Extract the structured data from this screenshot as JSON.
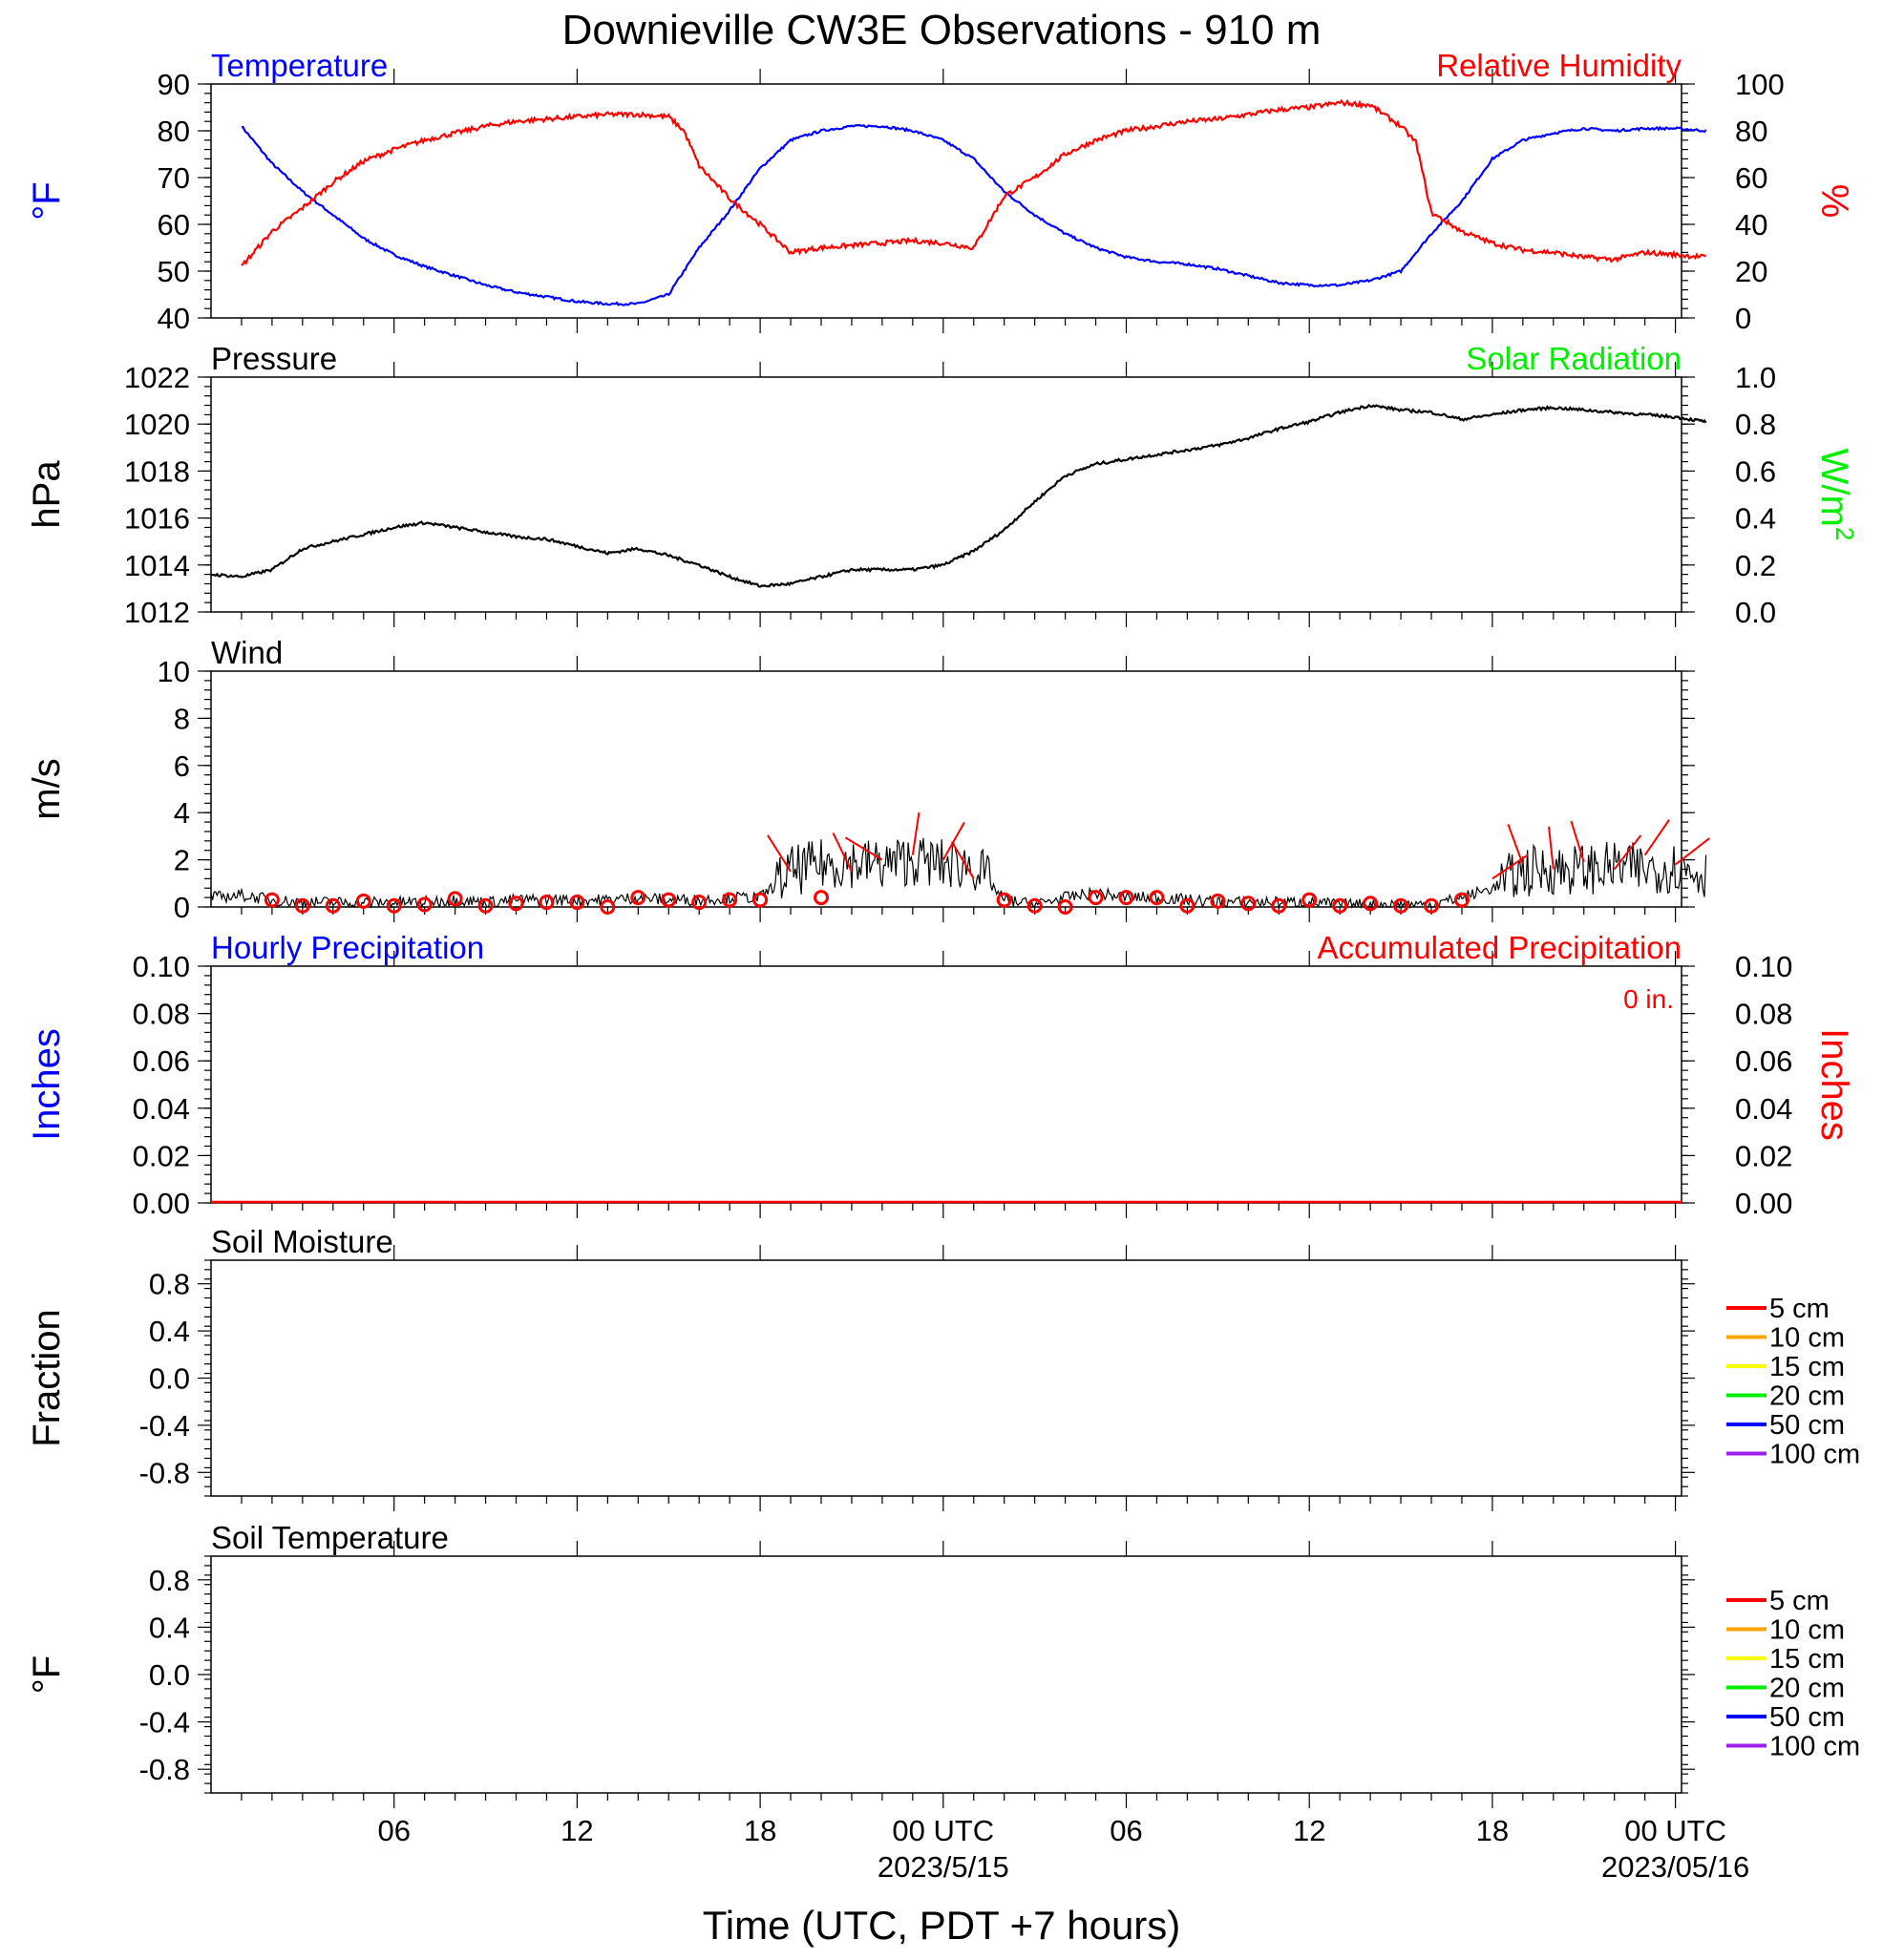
{
  "title": "Downieville CW3E Observations - 910 m",
  "colors": {
    "temperature": "#0000ff",
    "humidity": "#ff0000",
    "solar": "#00ee00",
    "pressure": "#000000",
    "wind_speed": "#000000",
    "wind_barb": "#ff0000"
  },
  "time_axis": {
    "label": "Time (UTC, PDT +7 hours)",
    "tick_labels": [
      "06",
      "12",
      "18",
      "00 UTC",
      "06",
      "12",
      "18",
      "00 UTC"
    ],
    "date_labels": [
      "2023/5/15",
      "2023/05/16"
    ]
  },
  "legend_items": [
    "5 cm",
    "10 cm",
    "15 cm",
    "20 cm",
    "50 cm",
    "100 cm"
  ],
  "legend_colors": [
    "#ff0000",
    "#ffa500",
    "#ffff00",
    "#00ee00",
    "#0000ff",
    "#a020f0"
  ],
  "chart_data": [
    {
      "id": "temp_rh",
      "type": "line",
      "title_left": "Temperature",
      "title_right": "Relative Humidity",
      "ylabel": "°F",
      "ylabel_right": "%",
      "ylim": [
        40,
        90
      ],
      "ylim_right": [
        0,
        100
      ],
      "yticks": [
        "40",
        "50",
        "60",
        "70",
        "80",
        "90"
      ],
      "yticks_right": [
        "0",
        "20",
        "40",
        "60",
        "80",
        "100"
      ],
      "x_hours_utc_from_00_2023-05-14": [
        1,
        2,
        3,
        4,
        5,
        6,
        7,
        8,
        9,
        10,
        11,
        12,
        13,
        14,
        15,
        15.5,
        16,
        17,
        18,
        19,
        20,
        21,
        22,
        23,
        24,
        25,
        26,
        27,
        28,
        29,
        30,
        31,
        32,
        33,
        34,
        35,
        36,
        37,
        38,
        39,
        39.5,
        40,
        41,
        42,
        43,
        44,
        45,
        46,
        47,
        48,
        49
      ],
      "series": [
        {
          "name": "Temperature",
          "axis": "left",
          "values": [
            81,
            73,
            67,
            62,
            57,
            53.5,
            51,
            49,
            47,
            45.5,
            44.5,
            43.5,
            43,
            43,
            45,
            50,
            55,
            63,
            72,
            78,
            80,
            81,
            81,
            80,
            78,
            74,
            67,
            62,
            58,
            55,
            53,
            52,
            51.5,
            50.5,
            49,
            47.5,
            47,
            47,
            48,
            50,
            54,
            58,
            65,
            74,
            78,
            79.5,
            80.5,
            80,
            80.5,
            80.5,
            80
          ]
        },
        {
          "name": "Relative Humidity",
          "axis": "right",
          "values": [
            22,
            37,
            47,
            58,
            67,
            72,
            76,
            79,
            82,
            84,
            85,
            86,
            87,
            87,
            86,
            80,
            65,
            51,
            40,
            28,
            30,
            31,
            32,
            33,
            32,
            30,
            52,
            60,
            70,
            76,
            80,
            82,
            84,
            85,
            87,
            89,
            90,
            92,
            91,
            82,
            75,
            45,
            37,
            32,
            29,
            28,
            26,
            25,
            28,
            27,
            26
          ]
        }
      ]
    },
    {
      "id": "pressure",
      "type": "line",
      "title_left": "Pressure",
      "title_right": "Solar Radiation",
      "ylabel": "hPa",
      "ylabel_right": "W/m2",
      "ylim": [
        1012,
        1022
      ],
      "ylim_right": [
        0,
        1
      ],
      "yticks": [
        "1012",
        "1014",
        "1016",
        "1018",
        "1020",
        "1022"
      ],
      "yticks_right": [
        "0.0",
        "0.2",
        "0.4",
        "0.6",
        "0.8",
        "1.0"
      ],
      "x_hours_utc_from_00_2023-05-14": [
        0,
        1,
        2,
        3,
        4,
        5,
        6,
        7,
        8,
        9,
        10,
        11,
        12,
        13,
        14,
        15,
        16,
        17,
        18,
        19,
        20,
        21,
        22,
        23,
        24,
        25,
        26,
        27,
        28,
        29,
        30,
        31,
        32,
        33,
        34,
        35,
        36,
        37,
        38,
        39,
        40,
        41,
        42,
        43,
        44,
        45,
        46,
        47,
        48,
        49
      ],
      "series": [
        {
          "name": "Pressure",
          "axis": "left",
          "values": [
            1013.6,
            1013.5,
            1013.8,
            1014.7,
            1015.0,
            1015.3,
            1015.6,
            1015.8,
            1015.6,
            1015.4,
            1015.2,
            1015.1,
            1014.8,
            1014.5,
            1014.7,
            1014.4,
            1014.0,
            1013.5,
            1013.1,
            1013.2,
            1013.5,
            1013.8,
            1013.8,
            1013.8,
            1014.0,
            1014.6,
            1015.5,
            1016.7,
            1017.8,
            1018.3,
            1018.5,
            1018.7,
            1018.9,
            1019.1,
            1019.4,
            1019.8,
            1020.1,
            1020.5,
            1020.8,
            1020.6,
            1020.5,
            1020.2,
            1020.4,
            1020.6,
            1020.7,
            1020.6,
            1020.5,
            1020.4,
            1020.3,
            1020.1
          ]
        }
      ]
    },
    {
      "id": "wind",
      "type": "line",
      "title_left": "Wind",
      "ylabel": "m/s",
      "ylim": [
        0,
        10
      ],
      "yticks": [
        "0",
        "2",
        "4",
        "6",
        "8",
        "10"
      ],
      "x_hours_utc_from_00_2023-05-14": [
        0,
        1,
        2,
        3,
        4,
        5,
        6,
        7,
        8,
        9,
        10,
        11,
        12,
        13,
        14,
        15,
        16,
        17,
        18,
        19,
        20,
        21,
        22,
        23,
        24,
        25,
        26,
        27,
        28,
        29,
        30,
        31,
        32,
        33,
        34,
        35,
        36,
        37,
        38,
        39,
        40,
        41,
        42,
        43,
        44,
        45,
        46,
        47,
        48,
        49
      ],
      "series": [
        {
          "name": "Wind speed",
          "axis": "left",
          "values": [
            0.4,
            0.5,
            0.3,
            0.2,
            0.2,
            0.2,
            0.2,
            0.2,
            0.3,
            0.2,
            0.3,
            0.3,
            0.3,
            0.3,
            0.4,
            0.3,
            0.3,
            0.4,
            0.4,
            1.5,
            1.8,
            1.9,
            1.8,
            2.0,
            1.8,
            1.8,
            0.3,
            0.1,
            0.4,
            0.6,
            0.4,
            0.4,
            0.3,
            0.2,
            0.2,
            0.2,
            0.2,
            0.1,
            0.1,
            0.1,
            0.1,
            0.4,
            0.8,
            1.5,
            1.6,
            1.6,
            1.7,
            1.6,
            1.7,
            1.4
          ]
        }
      ],
      "barb_hours": [
        2,
        3,
        4,
        5,
        6,
        7,
        8,
        9,
        10,
        11,
        12,
        13,
        14,
        15,
        16,
        17,
        18,
        19,
        20,
        21,
        22,
        23,
        24,
        25,
        26,
        27,
        28,
        29,
        30,
        31,
        32,
        33,
        34,
        35,
        36,
        37,
        38,
        39,
        40,
        41,
        42,
        43,
        44,
        45,
        46,
        47,
        48
      ],
      "barb_values": [
        0.3,
        0.05,
        0.05,
        0.25,
        0.05,
        0.1,
        0.35,
        0.05,
        0.15,
        0.2,
        0.2,
        0.0,
        0.4,
        0.3,
        0.2,
        0.3,
        0.3,
        1.5,
        0.4,
        1.5,
        2.0,
        2.2,
        2.0,
        1.2,
        0.3,
        0.05,
        0.0,
        0.4,
        0.4,
        0.4,
        0.05,
        0.25,
        0.15,
        0.05,
        0.3,
        0.05,
        0.15,
        0.05,
        0.05,
        0.3,
        1.2,
        1.8,
        1.6,
        1.9,
        1.6,
        2.2,
        1.8
      ]
    },
    {
      "id": "precip",
      "type": "line",
      "title_left": "Hourly Precipitation",
      "title_right": "Accumulated Precipitation",
      "annotation": "0 in.",
      "ylabel": "Inches",
      "ylabel_right": "Inches",
      "ylim": [
        0,
        0.1
      ],
      "yticks": [
        "0.00",
        "0.02",
        "0.04",
        "0.06",
        "0.08",
        "0.10"
      ],
      "yticks_right": [
        "0.00",
        "0.02",
        "0.04",
        "0.06",
        "0.08",
        "0.10"
      ],
      "series": [
        {
          "name": "Accumulated Precipitation",
          "axis": "right",
          "values": [
            0,
            0
          ]
        }
      ]
    },
    {
      "id": "soilm",
      "type": "line",
      "title_left": "Soil Moisture",
      "ylabel": "Fraction",
      "ylim": [
        -1,
        1
      ],
      "yticks": [
        "-0.8",
        "-0.4",
        "0.0",
        "0.4",
        "0.8"
      ]
    },
    {
      "id": "soilt",
      "type": "line",
      "title_left": "Soil Temperature",
      "ylabel": "°F",
      "ylim": [
        -1,
        1
      ],
      "yticks": [
        "-0.8",
        "-0.4",
        "0.0",
        "0.4",
        "0.8"
      ]
    }
  ]
}
